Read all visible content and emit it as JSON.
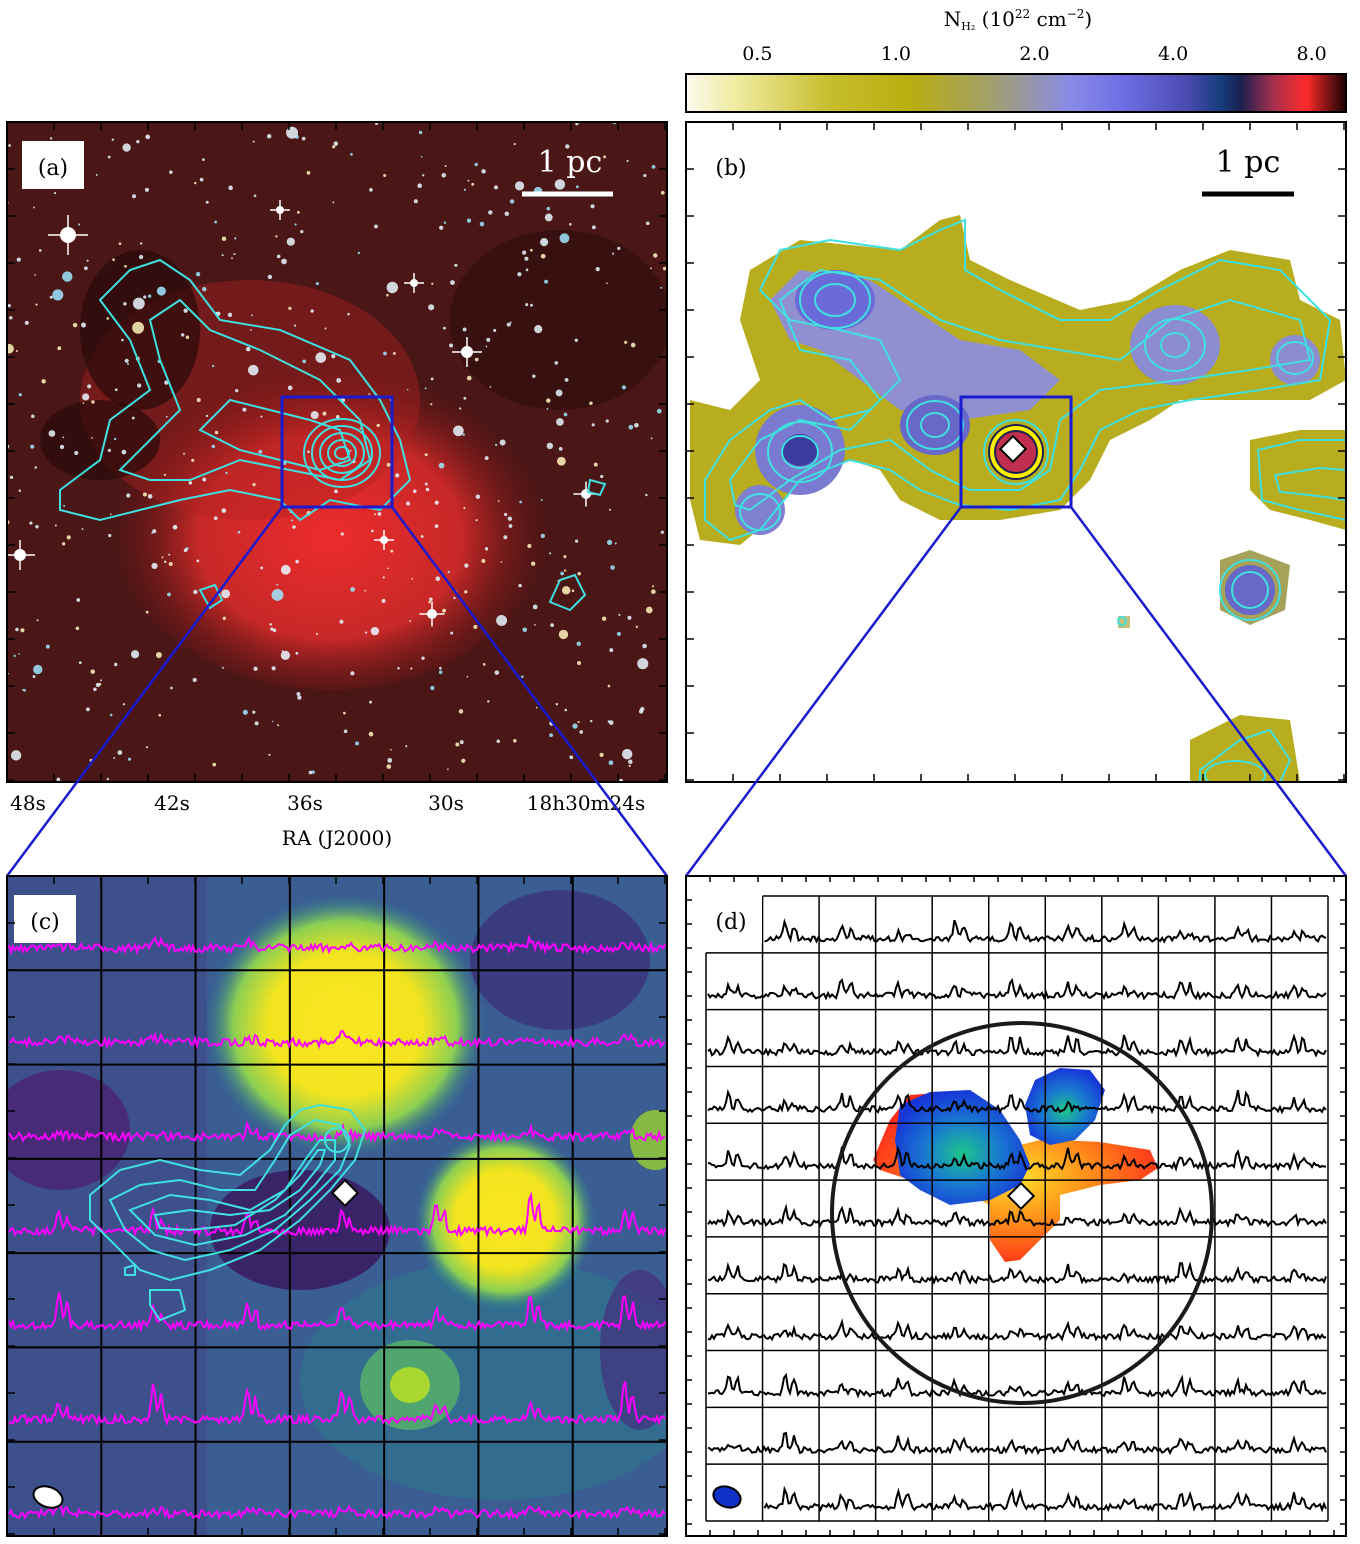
{
  "colorbar": {
    "label": "N",
    "label_sub": "H₂",
    "label_unit": "(10",
    "label_exp": "22",
    "label_tail": "cm",
    "label_tail_exp": "−2",
    "label_close": ")",
    "ticks": [
      "0.5",
      "1.0",
      "2.0",
      "4.0",
      "8.0"
    ],
    "colors": [
      "#fcfaf0",
      "#b9ad0f",
      "#8a8be6",
      "#6f6fe8",
      "#2a2a6e",
      "#0b1c54",
      "#c0304e",
      "#ff2a2a",
      "#2a0000"
    ]
  },
  "panels": {
    "a": {
      "label": "(a)",
      "scale_label": "1 pc"
    },
    "b": {
      "label": "(b)",
      "scale_label": "1 pc"
    },
    "c": {
      "label": "(c)"
    },
    "d": {
      "label": "(d)"
    }
  },
  "ra_axis": {
    "ticks": [
      "48s",
      "42s",
      "36s",
      "30s",
      "18h30m24s"
    ],
    "title": "RA (J2000)"
  },
  "colors": {
    "contour": "#40e0e0",
    "spectrum_c": "#ff00ff",
    "spectrum_d": "#000000",
    "connector": "#1a1ad0",
    "box": "#1a1ad0"
  }
}
